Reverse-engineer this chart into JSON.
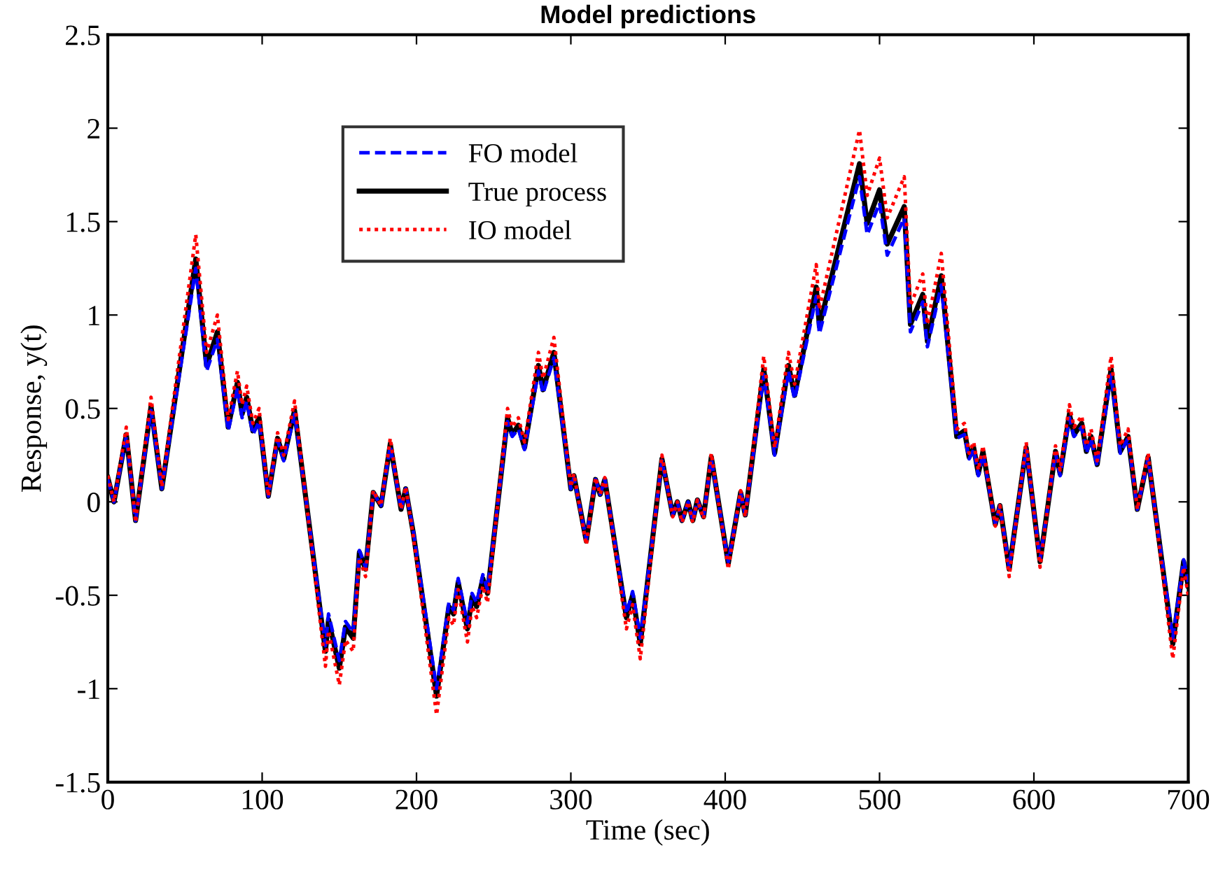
{
  "chart_data": {
    "type": "line",
    "title": "Model predictions",
    "xlabel": "Time (sec)",
    "ylabel": "Response, y(t)",
    "x": [
      0,
      4,
      12,
      18,
      28,
      35,
      57,
      64,
      71,
      78,
      84,
      87,
      90,
      94,
      98,
      104,
      110,
      114,
      121,
      141,
      143,
      150,
      154,
      159,
      163,
      167,
      172,
      177,
      183,
      190,
      193,
      198,
      213,
      221,
      224,
      227,
      233,
      236,
      239,
      243,
      246,
      259,
      262,
      266,
      270,
      279,
      282,
      289,
      300,
      302,
      310,
      316,
      319,
      322,
      336,
      340,
      345,
      359,
      366,
      369,
      372,
      376,
      379,
      382,
      386,
      391,
      402,
      410,
      413,
      425,
      432,
      441,
      445,
      459,
      461,
      487,
      492,
      500,
      505,
      516,
      520,
      528,
      531,
      540,
      550,
      555,
      558,
      561,
      564,
      567,
      575,
      578,
      584,
      595,
      604,
      614,
      617,
      623,
      626,
      631,
      634,
      637,
      641,
      650,
      656,
      661,
      667,
      674,
      690,
      697,
      700
    ],
    "xlim": [
      0,
      700
    ],
    "xticks": [
      0,
      100,
      200,
      300,
      400,
      500,
      600,
      700
    ],
    "ylim": [
      -1.5,
      2.5
    ],
    "yticks": [
      -1.5,
      -1,
      -0.5,
      0,
      0.5,
      1,
      1.5,
      2,
      2.5
    ],
    "grid": false,
    "legend": "top left",
    "series": [
      {
        "name": "FO model",
        "color": "#0000ff",
        "line_style": "dashed",
        "values": [
          0.12,
          0.0,
          0.35,
          -0.1,
          0.49,
          0.07,
          1.25,
          0.7,
          0.87,
          0.38,
          0.61,
          0.45,
          0.54,
          0.36,
          0.43,
          0.03,
          0.33,
          0.22,
          0.47,
          -0.77,
          -0.6,
          -0.85,
          -0.64,
          -0.7,
          -0.26,
          -0.35,
          0.05,
          -0.02,
          0.3,
          -0.04,
          0.07,
          -0.16,
          -1.0,
          -0.54,
          -0.58,
          -0.41,
          -0.65,
          -0.49,
          -0.54,
          -0.39,
          -0.47,
          0.43,
          0.35,
          0.39,
          0.28,
          0.7,
          0.58,
          0.77,
          0.07,
          0.13,
          -0.2,
          0.12,
          0.04,
          0.12,
          -0.6,
          -0.48,
          -0.73,
          0.22,
          -0.07,
          0.0,
          -0.1,
          0.0,
          -0.1,
          0.01,
          -0.08,
          0.23,
          -0.32,
          0.05,
          -0.07,
          0.68,
          0.25,
          0.7,
          0.55,
          1.1,
          0.9,
          1.74,
          1.43,
          1.6,
          1.32,
          1.52,
          0.91,
          1.07,
          0.83,
          1.16,
          0.34,
          0.36,
          0.23,
          0.28,
          0.14,
          0.26,
          -0.12,
          -0.02,
          -0.35,
          0.28,
          -0.31,
          0.26,
          0.14,
          0.45,
          0.35,
          0.4,
          0.26,
          0.34,
          0.19,
          0.68,
          0.26,
          0.34,
          -0.04,
          0.23,
          -0.73,
          -0.31,
          -0.43
        ]
      },
      {
        "name": "True process",
        "color": "#000000",
        "line_style": "solid",
        "values": [
          0.13,
          0.0,
          0.36,
          -0.1,
          0.51,
          0.07,
          1.3,
          0.73,
          0.91,
          0.4,
          0.64,
          0.47,
          0.56,
          0.38,
          0.45,
          0.03,
          0.34,
          0.23,
          0.49,
          -0.8,
          -0.63,
          -0.89,
          -0.67,
          -0.73,
          -0.27,
          -0.36,
          0.05,
          -0.02,
          0.31,
          -0.04,
          0.07,
          -0.17,
          -1.04,
          -0.56,
          -0.6,
          -0.43,
          -0.68,
          -0.51,
          -0.56,
          -0.41,
          -0.49,
          0.45,
          0.36,
          0.41,
          0.29,
          0.73,
          0.6,
          0.8,
          0.07,
          0.14,
          -0.21,
          0.12,
          0.04,
          0.12,
          -0.62,
          -0.5,
          -0.76,
          0.23,
          -0.07,
          0.0,
          -0.1,
          0.0,
          -0.1,
          0.01,
          -0.08,
          0.24,
          -0.33,
          0.05,
          -0.07,
          0.71,
          0.26,
          0.73,
          0.57,
          1.15,
          0.94,
          1.81,
          1.49,
          1.67,
          1.38,
          1.58,
          0.95,
          1.11,
          0.86,
          1.21,
          0.35,
          0.38,
          0.24,
          0.29,
          0.15,
          0.27,
          -0.12,
          -0.02,
          -0.36,
          0.29,
          -0.32,
          0.27,
          0.15,
          0.47,
          0.36,
          0.42,
          0.27,
          0.35,
          0.2,
          0.71,
          0.27,
          0.35,
          -0.04,
          0.24,
          -0.76,
          -0.32,
          -0.45
        ]
      },
      {
        "name": "IO model",
        "color": "#ff0000",
        "line_style": "dotted",
        "values": [
          0.14,
          0.0,
          0.4,
          -0.11,
          0.56,
          0.08,
          1.43,
          0.8,
          1.0,
          0.44,
          0.7,
          0.52,
          0.62,
          0.42,
          0.5,
          0.03,
          0.37,
          0.25,
          0.54,
          -0.88,
          -0.69,
          -0.98,
          -0.74,
          -0.8,
          -0.3,
          -0.4,
          0.06,
          -0.02,
          0.34,
          -0.04,
          0.08,
          -0.19,
          -1.14,
          -0.62,
          -0.66,
          -0.47,
          -0.75,
          -0.56,
          -0.62,
          -0.45,
          -0.54,
          0.5,
          0.4,
          0.45,
          0.32,
          0.8,
          0.66,
          0.88,
          0.08,
          0.15,
          -0.23,
          0.13,
          0.04,
          0.13,
          -0.68,
          -0.55,
          -0.84,
          0.25,
          -0.08,
          0.0,
          -0.11,
          0.0,
          -0.11,
          0.01,
          -0.09,
          0.26,
          -0.36,
          0.06,
          -0.08,
          0.78,
          0.29,
          0.8,
          0.63,
          1.27,
          1.03,
          1.99,
          1.64,
          1.84,
          1.52,
          1.74,
          1.05,
          1.22,
          0.95,
          1.33,
          0.39,
          0.42,
          0.26,
          0.32,
          0.17,
          0.3,
          -0.13,
          -0.02,
          -0.4,
          0.32,
          -0.35,
          0.3,
          0.17,
          0.52,
          0.4,
          0.46,
          0.3,
          0.39,
          0.22,
          0.78,
          0.3,
          0.39,
          -0.04,
          0.26,
          -0.84,
          -0.35,
          -0.5
        ]
      }
    ]
  }
}
